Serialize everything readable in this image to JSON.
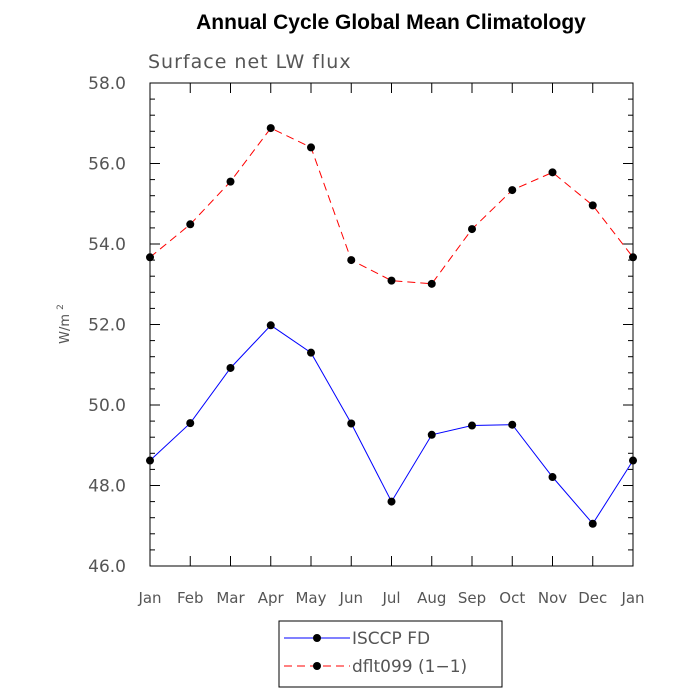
{
  "chart_data": {
    "type": "line",
    "title": "Annual Cycle Global Mean Climatology",
    "subtitle": "Surface net LW flux",
    "ylabel": "W/m",
    "ylabel_superscript": "2",
    "xlabel": "",
    "categories": [
      "Jan",
      "Feb",
      "Mar",
      "Apr",
      "May",
      "Jun",
      "Jul",
      "Aug",
      "Sep",
      "Oct",
      "Nov",
      "Dec",
      "Jan"
    ],
    "ylim": [
      46.0,
      58.0
    ],
    "yticks": [
      46.0,
      48.0,
      50.0,
      52.0,
      54.0,
      56.0,
      58.0
    ],
    "ytick_labels": [
      "46.0",
      "48.0",
      "50.0",
      "52.0",
      "54.0",
      "56.0",
      "58.0"
    ],
    "grid": false,
    "legend_position": "bottom",
    "series": [
      {
        "name": "ISCCP FD",
        "color": "#0000ff",
        "line_style": "solid",
        "marker": "circle",
        "values": [
          48.62,
          49.55,
          50.92,
          51.98,
          51.3,
          49.54,
          47.6,
          49.26,
          49.49,
          49.51,
          48.21,
          47.05,
          48.62
        ]
      },
      {
        "name": "dflt099 (1−1)",
        "color": "#ff0000",
        "line_style": "dashed",
        "marker": "circle",
        "values": [
          53.67,
          54.49,
          55.55,
          56.88,
          56.4,
          53.6,
          53.09,
          53.01,
          54.37,
          55.34,
          55.78,
          54.96,
          53.67
        ]
      }
    ]
  }
}
